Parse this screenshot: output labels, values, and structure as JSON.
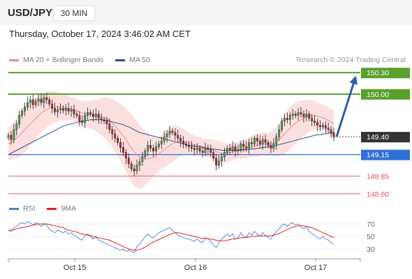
{
  "header": {
    "symbol": "USD/JPY",
    "timeframe": "30 MIN"
  },
  "datetime": "Thursday, October 17, 2024 3:46:02 AM CET",
  "legend": [
    {
      "label": "MA 20 + Bollinger Bands",
      "color": "#f08a8a"
    },
    {
      "label": "MA 50",
      "color": "#2c4f86"
    }
  ],
  "credit": "Research © 2024 Trading Central",
  "rsi_legend": [
    {
      "label": "RSI",
      "color": "#4a7fd6"
    },
    {
      "label": "9MA",
      "color": "#e02020"
    }
  ],
  "chart_data": [
    {
      "type": "candlestick",
      "y_range": [
        148.52,
        150.38
      ],
      "x_tick_labels": [
        "Oct 15",
        "Oct 16",
        "Oct 17"
      ],
      "levels": [
        {
          "label": "150.30",
          "value": 150.3,
          "color": "#5aa02c",
          "style": "resistance"
        },
        {
          "label": "150.00",
          "value": 150.0,
          "color": "#5aa02c",
          "style": "resistance"
        },
        {
          "label": "149.40",
          "value": 149.4,
          "color": "#333333",
          "style": "last"
        },
        {
          "label": "149.15",
          "value": 149.15,
          "color": "#2f6fd6",
          "style": "pivot"
        },
        {
          "label": "148.85",
          "value": 148.85,
          "color": "#e05050",
          "style": "support"
        },
        {
          "label": "148.60",
          "value": 148.6,
          "color": "#e05050",
          "style": "support"
        }
      ],
      "close": [
        149.42,
        149.36,
        149.5,
        149.58,
        149.7,
        149.76,
        149.82,
        149.88,
        149.92,
        149.85,
        149.9,
        149.93,
        149.88,
        149.95,
        149.92,
        149.86,
        149.8,
        149.75,
        149.78,
        149.8,
        149.77,
        149.8,
        149.76,
        149.78,
        149.72,
        149.7,
        149.62,
        149.6,
        149.7,
        149.74,
        149.72,
        149.68,
        149.72,
        149.66,
        149.64,
        149.62,
        149.58,
        149.5,
        149.44,
        149.38,
        149.32,
        149.25,
        149.18,
        149.1,
        149.02,
        148.95,
        148.92,
        149.0,
        149.05,
        149.12,
        149.2,
        149.28,
        149.24,
        149.2,
        149.26,
        149.3,
        149.34,
        149.4,
        149.44,
        149.48,
        149.46,
        149.42,
        149.38,
        149.34,
        149.3,
        149.28,
        149.26,
        149.24,
        149.22,
        149.24,
        149.2,
        149.18,
        149.24,
        149.22,
        149.18,
        149.1,
        149.0,
        149.06,
        149.12,
        149.18,
        149.24,
        149.22,
        149.26,
        149.2,
        149.22,
        149.3,
        149.26,
        149.24,
        149.32,
        149.3,
        149.38,
        149.34,
        149.3,
        149.36,
        149.32,
        149.28,
        149.24,
        149.3,
        149.4,
        149.5,
        149.62,
        149.66,
        149.64,
        149.7,
        149.72,
        149.7,
        149.74,
        149.72,
        149.68,
        149.72,
        149.66,
        149.62,
        149.6,
        149.56,
        149.54,
        149.56,
        149.52,
        149.5,
        149.46,
        149.4
      ],
      "ma20": [
        149.3,
        149.32,
        149.35,
        149.38,
        149.42,
        149.46,
        149.5,
        149.54,
        149.58,
        149.62,
        149.66,
        149.7,
        149.73,
        149.76,
        149.78,
        149.8,
        149.81,
        149.82,
        149.82,
        149.82,
        149.82,
        149.81,
        149.8,
        149.79,
        149.78,
        149.77,
        149.75,
        149.73,
        149.72,
        149.71,
        149.71,
        149.7,
        149.7,
        149.69,
        149.68,
        149.67,
        149.65,
        149.62,
        149.59,
        149.55,
        149.51,
        149.46,
        149.41,
        149.36,
        149.3,
        149.24,
        149.19,
        149.15,
        149.12,
        149.1,
        149.09,
        149.09,
        149.1,
        149.11,
        149.13,
        149.16,
        149.19,
        149.22,
        149.25,
        149.28,
        149.3,
        149.32,
        149.33,
        149.33,
        149.33,
        149.32,
        149.31,
        149.3,
        149.29,
        149.28,
        149.27,
        149.26,
        149.25,
        149.24,
        149.23,
        149.21,
        149.19,
        149.18,
        149.17,
        149.17,
        149.17,
        149.18,
        149.19,
        149.2,
        149.21,
        149.22,
        149.23,
        149.24,
        149.25,
        149.26,
        149.27,
        149.28,
        149.29,
        149.3,
        149.3,
        149.3,
        149.3,
        149.31,
        149.33,
        149.36,
        149.4,
        149.44,
        149.48,
        149.52,
        149.56,
        149.59,
        149.62,
        149.64,
        149.66,
        149.68,
        149.69,
        149.7,
        149.7,
        149.69,
        149.68,
        149.67,
        149.65,
        149.63,
        149.61,
        149.58
      ],
      "bb_width": [
        0.22,
        0.24,
        0.26,
        0.28,
        0.3,
        0.31,
        0.32,
        0.32,
        0.31,
        0.3,
        0.29,
        0.28,
        0.27,
        0.26,
        0.25,
        0.24,
        0.23,
        0.22,
        0.21,
        0.2,
        0.19,
        0.18,
        0.17,
        0.16,
        0.16,
        0.16,
        0.16,
        0.17,
        0.18,
        0.19,
        0.2,
        0.21,
        0.22,
        0.24,
        0.26,
        0.28,
        0.3,
        0.32,
        0.34,
        0.36,
        0.38,
        0.4,
        0.42,
        0.44,
        0.46,
        0.48,
        0.48,
        0.47,
        0.45,
        0.42,
        0.38,
        0.34,
        0.3,
        0.27,
        0.25,
        0.24,
        0.24,
        0.25,
        0.26,
        0.26,
        0.25,
        0.24,
        0.22,
        0.2,
        0.18,
        0.16,
        0.15,
        0.14,
        0.13,
        0.12,
        0.12,
        0.12,
        0.12,
        0.13,
        0.14,
        0.15,
        0.16,
        0.16,
        0.15,
        0.14,
        0.13,
        0.12,
        0.12,
        0.12,
        0.12,
        0.13,
        0.13,
        0.14,
        0.14,
        0.15,
        0.15,
        0.16,
        0.16,
        0.16,
        0.16,
        0.16,
        0.17,
        0.18,
        0.2,
        0.23,
        0.26,
        0.28,
        0.29,
        0.3,
        0.3,
        0.29,
        0.28,
        0.27,
        0.25,
        0.24,
        0.22,
        0.21,
        0.2,
        0.19,
        0.18,
        0.18,
        0.18,
        0.18,
        0.19,
        0.2
      ],
      "ma50": [
        149.15,
        149.17,
        149.19,
        149.21,
        149.23,
        149.25,
        149.27,
        149.29,
        149.31,
        149.33,
        149.35,
        149.37,
        149.39,
        149.41,
        149.43,
        149.45,
        149.47,
        149.49,
        149.51,
        149.53,
        149.55,
        149.56,
        149.57,
        149.58,
        149.59,
        149.6,
        149.61,
        149.62,
        149.63,
        149.63,
        149.64,
        149.64,
        149.64,
        149.64,
        149.64,
        149.63,
        149.63,
        149.62,
        149.61,
        149.6,
        149.59,
        149.58,
        149.57,
        149.55,
        149.54,
        149.52,
        149.5,
        149.48,
        149.46,
        149.45,
        149.44,
        149.43,
        149.42,
        149.41,
        149.4,
        149.39,
        149.38,
        149.37,
        149.36,
        149.35,
        149.34,
        149.33,
        149.32,
        149.31,
        149.3,
        149.29,
        149.28,
        149.28,
        149.27,
        149.26,
        149.26,
        149.25,
        149.24,
        149.24,
        149.23,
        149.23,
        149.22,
        149.22,
        149.21,
        149.21,
        149.21,
        149.21,
        149.21,
        149.21,
        149.21,
        149.21,
        149.22,
        149.22,
        149.22,
        149.23,
        149.23,
        149.24,
        149.24,
        149.25,
        149.25,
        149.26,
        149.26,
        149.27,
        149.28,
        149.29,
        149.3,
        149.31,
        149.32,
        149.33,
        149.34,
        149.35,
        149.36,
        149.37,
        149.38,
        149.39,
        149.4,
        149.41,
        149.42,
        149.43,
        149.43,
        149.44,
        149.44,
        149.45,
        149.45,
        149.46
      ],
      "projection": {
        "from": 149.4,
        "to": 150.3
      }
    },
    {
      "type": "line",
      "name_rsi": "RSI",
      "name_ma": "9MA",
      "y_ticks": [
        70,
        50,
        30
      ],
      "y_range": [
        20,
        80
      ],
      "rsi": [
        60,
        58,
        64,
        66,
        70,
        72,
        70,
        74,
        72,
        68,
        72,
        70,
        66,
        70,
        68,
        62,
        58,
        56,
        60,
        58,
        56,
        58,
        54,
        56,
        52,
        50,
        46,
        44,
        52,
        54,
        50,
        46,
        50,
        44,
        42,
        40,
        38,
        36,
        34,
        32,
        30,
        28,
        30,
        26,
        28,
        26,
        24,
        34,
        38,
        44,
        50,
        54,
        50,
        48,
        52,
        56,
        58,
        60,
        62,
        64,
        60,
        56,
        52,
        50,
        48,
        46,
        46,
        44,
        42,
        46,
        42,
        40,
        48,
        46,
        42,
        36,
        32,
        40,
        46,
        50,
        54,
        50,
        54,
        46,
        48,
        56,
        50,
        48,
        56,
        52,
        58,
        54,
        50,
        56,
        52,
        48,
        46,
        52,
        58,
        62,
        68,
        70,
        66,
        70,
        72,
        68,
        70,
        66,
        62,
        66,
        58,
        54,
        52,
        48,
        46,
        50,
        46,
        44,
        40,
        38
      ],
      "rsi_ma": [
        60,
        60,
        61,
        62,
        63,
        64,
        65,
        66,
        67,
        68,
        69,
        70,
        70,
        70,
        70,
        69,
        68,
        67,
        66,
        65,
        64,
        62,
        60,
        59,
        58,
        57,
        55,
        54,
        53,
        52,
        51,
        50,
        49,
        48,
        47,
        46,
        45,
        44,
        42,
        40,
        38,
        36,
        34,
        32,
        30,
        29,
        28,
        28,
        29,
        31,
        33,
        36,
        39,
        41,
        43,
        45,
        47,
        49,
        51,
        53,
        55,
        56,
        56,
        55,
        54,
        53,
        52,
        51,
        50,
        49,
        48,
        47,
        47,
        46,
        46,
        45,
        44,
        43,
        43,
        43,
        44,
        45,
        46,
        46,
        47,
        48,
        48,
        49,
        49,
        50,
        50,
        51,
        51,
        51,
        51,
        51,
        51,
        52,
        53,
        55,
        57,
        59,
        61,
        63,
        65,
        66,
        67,
        67,
        67,
        66,
        65,
        64,
        62,
        60,
        58,
        56,
        54,
        52,
        50,
        48
      ]
    }
  ]
}
